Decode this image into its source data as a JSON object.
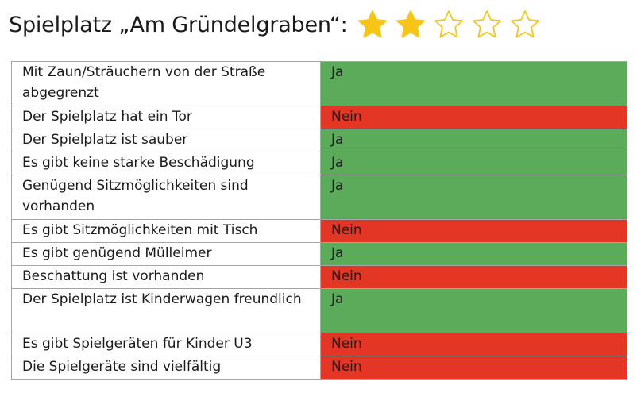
{
  "header": {
    "title": "Spielplatz „Am Gründelgraben“:",
    "rating": 2,
    "rating_max": 5,
    "star_color": "#f5c518",
    "star_outline_color": "#f5c518"
  },
  "colors": {
    "yes": "#5bab5b",
    "no": "#e43624",
    "border": "#a6a6a6"
  },
  "rows": [
    {
      "criterion": "Mit Zaun/Sträuchern von der Straße abgegrenzt",
      "answer": "Ja"
    },
    {
      "criterion": "Der Spielplatz hat ein Tor",
      "answer": "Nein"
    },
    {
      "criterion": "Der Spielplatz ist sauber",
      "answer": "Ja"
    },
    {
      "criterion": "Es gibt keine starke Beschädigung",
      "answer": "Ja"
    },
    {
      "criterion": "Genügend Sitzmöglichkeiten sind vorhanden",
      "answer": "Ja"
    },
    {
      "criterion": "Es gibt Sitzmöglichkeiten mit Tisch",
      "answer": "Nein"
    },
    {
      "criterion": "Es gibt genügend Mülleimer",
      "answer": "Ja"
    },
    {
      "criterion": "Beschattung ist vorhanden",
      "answer": "Nein"
    },
    {
      "criterion": "Der Spielplatz ist Kinderwagen freundlich",
      "answer": "Ja"
    },
    {
      "criterion": "Es gibt Spielgeräten für Kinder U3",
      "answer": "Nein"
    },
    {
      "criterion": "Die Spielgeräte sind vielfältig",
      "answer": "Nein"
    }
  ]
}
